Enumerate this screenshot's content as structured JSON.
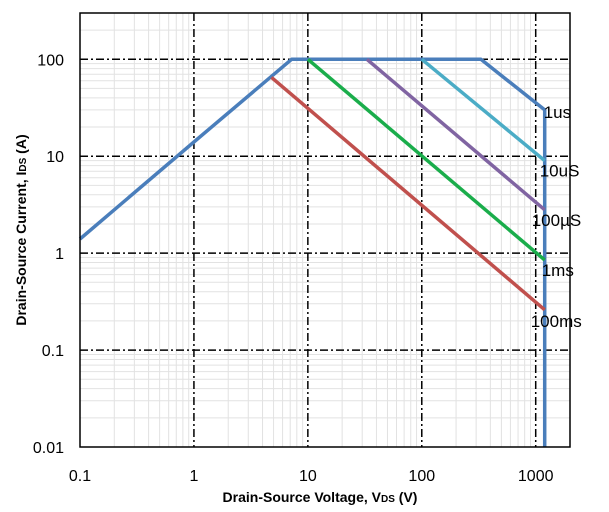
{
  "chart_data": {
    "type": "line",
    "x_scale": "log",
    "y_scale": "log",
    "xlim": [
      0.1,
      2000
    ],
    "ylim": [
      0.01,
      300
    ],
    "grid": true,
    "x_ticks": [
      {
        "value": 0.1,
        "label": "0.1"
      },
      {
        "value": 1,
        "label": "1"
      },
      {
        "value": 10,
        "label": "10"
      },
      {
        "value": 100,
        "label": "100"
      },
      {
        "value": 1000,
        "label": "1000"
      }
    ],
    "y_ticks": [
      {
        "value": 0.01,
        "label": "0.01"
      },
      {
        "value": 0.1,
        "label": "0.1"
      },
      {
        "value": 1,
        "label": "1"
      },
      {
        "value": 10,
        "label": "10"
      },
      {
        "value": 100,
        "label": "100"
      }
    ],
    "xlabel": {
      "prefix": "Drain-Source Voltage, V",
      "sub": "DS",
      "suffix": " (V)"
    },
    "ylabel": {
      "prefix": "Drain-Source Current, I",
      "sub": "DS",
      "suffix": " (A)"
    },
    "series": [
      {
        "name": "1us",
        "color": "#4a7ebb",
        "points": [
          [
            0.1,
            1.4
          ],
          [
            1,
            14
          ],
          [
            7.2,
            100
          ],
          [
            330,
            100
          ],
          [
            1200,
            30
          ],
          [
            1200,
            0.01
          ]
        ]
      },
      {
        "name": "10uS",
        "color": "#4bacc6",
        "points": [
          [
            100,
            100
          ],
          [
            1200,
            9
          ]
        ]
      },
      {
        "name": "100µS",
        "color": "#8064a2",
        "points": [
          [
            33,
            100
          ],
          [
            1200,
            2.8
          ]
        ]
      },
      {
        "name": "1ms",
        "color": "#1aad4b",
        "points": [
          [
            10,
            100
          ],
          [
            1200,
            0.85
          ]
        ]
      },
      {
        "name": "100ms",
        "color": "#c0504d",
        "points": [
          [
            4.8,
            65
          ],
          [
            1200,
            0.26
          ]
        ]
      }
    ]
  }
}
